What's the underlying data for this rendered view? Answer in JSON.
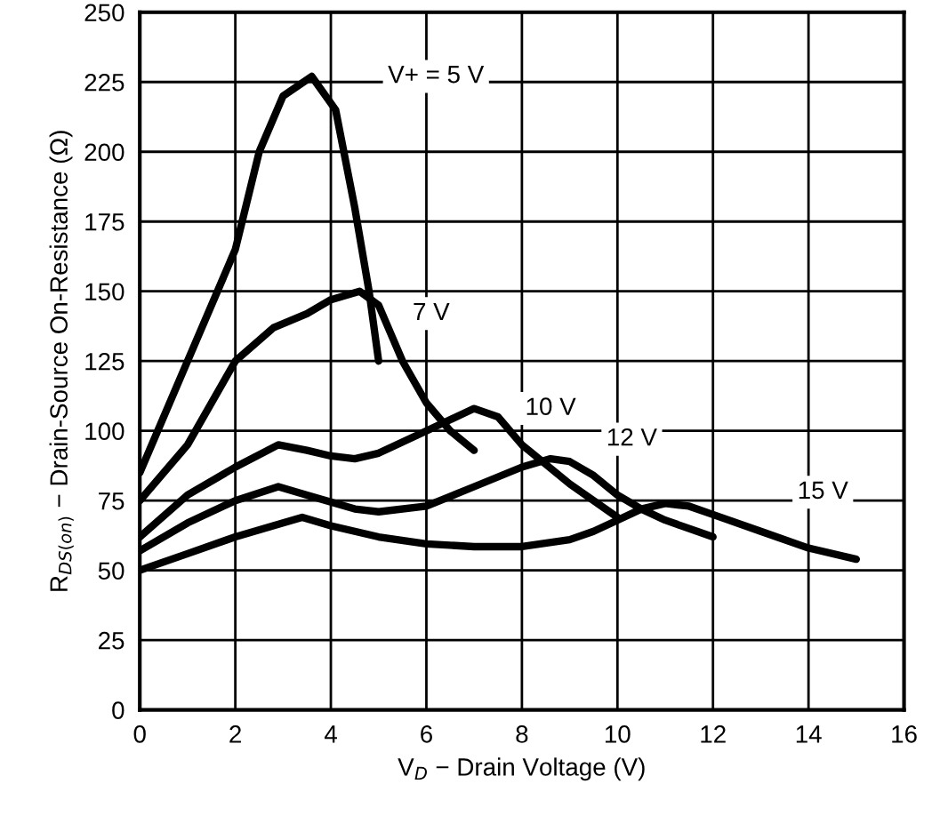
{
  "chart_data": {
    "type": "line",
    "xlabel": "V$_{D}$ − Drain Voltage (V)",
    "ylabel": "R$_{DS(on)}$ − Drain-Source On-Resistance (Ω)",
    "xlim": [
      0,
      16
    ],
    "xticks": [
      0,
      2,
      4,
      6,
      8,
      10,
      12,
      14,
      16
    ],
    "ylim": [
      0,
      250
    ],
    "yticks": [
      0,
      25,
      50,
      75,
      100,
      125,
      150,
      175,
      200,
      225,
      250
    ],
    "grid": true,
    "legend": false,
    "marker": "none",
    "line_style": "solid",
    "series": [
      {
        "name": "V+ = 5 V",
        "color": "#000000",
        "x": [
          0,
          1,
          2,
          2.5,
          3,
          3.6,
          4.1,
          4.5,
          4.8,
          5
        ],
        "values": [
          85,
          125,
          165,
          200,
          220,
          227,
          215,
          180,
          150,
          125
        ]
      },
      {
        "name": "7 V",
        "color": "#000000",
        "x": [
          0,
          1,
          2,
          2.8,
          3.5,
          4,
          4.6,
          5,
          5.5,
          6,
          6.5,
          7
        ],
        "values": [
          75,
          95,
          125,
          137,
          142,
          147,
          150,
          145,
          125,
          110,
          100,
          93
        ]
      },
      {
        "name": "10 V",
        "color": "#000000",
        "x": [
          0,
          1,
          2,
          2.9,
          3.5,
          4,
          4.5,
          5,
          6,
          7,
          7.5,
          8,
          8.5,
          9,
          10
        ],
        "values": [
          62,
          77,
          87,
          95,
          93,
          91,
          90,
          92,
          100,
          108,
          105,
          95,
          88,
          81,
          69
        ]
      },
      {
        "name": "12 V",
        "color": "#000000",
        "x": [
          0,
          1,
          2,
          2.9,
          3.5,
          4.5,
          5,
          6,
          7,
          8,
          8.6,
          9,
          9.5,
          10,
          10.5,
          11,
          12
        ],
        "values": [
          57,
          67,
          75,
          80,
          77,
          72,
          71,
          73,
          80,
          87,
          90,
          89,
          84,
          77,
          72,
          68,
          62
        ]
      },
      {
        "name": "15 V",
        "color": "#000000",
        "x": [
          0,
          1,
          2,
          3,
          3.4,
          4,
          5,
          6,
          7,
          8,
          9,
          9.5,
          10,
          10.5,
          11,
          11.5,
          12,
          13,
          14,
          15
        ],
        "values": [
          50,
          56,
          62,
          67,
          69,
          66,
          62,
          59.5,
          58.5,
          58.5,
          61,
          64,
          68,
          72,
          74,
          73,
          70,
          64,
          58,
          54
        ]
      }
    ]
  }
}
